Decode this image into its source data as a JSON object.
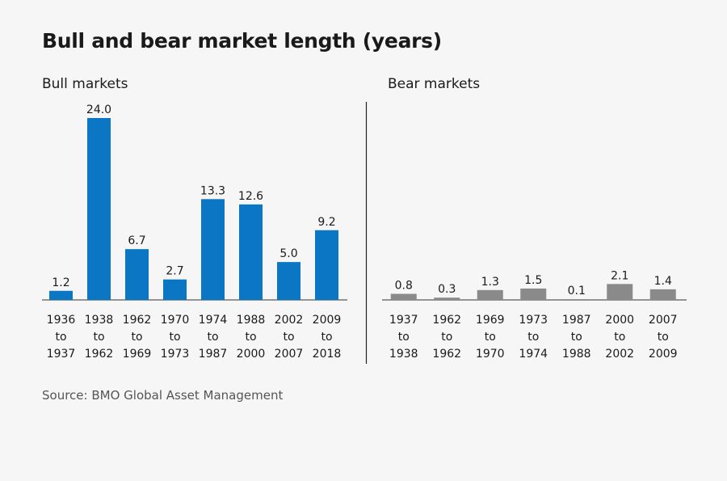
{
  "title": "Bull and bear market length (years)",
  "source": "Source: BMO Global Asset Management",
  "colors": {
    "bull": "#0a76c4",
    "bear": "#8a8a8a",
    "axis": "#333333",
    "background": "#f6f6f6"
  },
  "chart_data": [
    {
      "type": "bar",
      "title": "Bull markets",
      "categories": [
        [
          "1936",
          "to",
          "1937"
        ],
        [
          "1938",
          "to",
          "1962"
        ],
        [
          "1962",
          "to",
          "1969"
        ],
        [
          "1970",
          "to",
          "1973"
        ],
        [
          "1974",
          "to",
          "1987"
        ],
        [
          "1988",
          "to",
          "2000"
        ],
        [
          "2002",
          "to",
          "2007"
        ],
        [
          "2009",
          "to",
          "2018"
        ]
      ],
      "values": [
        1.2,
        24.0,
        6.7,
        2.7,
        13.3,
        12.6,
        5.0,
        9.2
      ],
      "labels": [
        "1.2",
        "24.0",
        "6.7",
        "2.7",
        "13.3",
        "12.6",
        "5.0",
        "9.2"
      ],
      "ylim": [
        0,
        24
      ],
      "grid": false,
      "legend": "none"
    },
    {
      "type": "bar",
      "title": "Bear markets",
      "categories": [
        [
          "1937",
          "to",
          "1938"
        ],
        [
          "1962",
          "to",
          "1962"
        ],
        [
          "1969",
          "to",
          "1970"
        ],
        [
          "1973",
          "to",
          "1974"
        ],
        [
          "1987",
          "to",
          "1988"
        ],
        [
          "2000",
          "to",
          "2002"
        ],
        [
          "2007",
          "to",
          "2009"
        ]
      ],
      "values": [
        0.8,
        0.3,
        1.3,
        1.5,
        0.1,
        2.1,
        1.4
      ],
      "labels": [
        "0.8",
        "0.3",
        "1.3",
        "1.5",
        "0.1",
        "2.1",
        "1.4"
      ],
      "ylim": [
        0,
        24
      ],
      "grid": false,
      "legend": "none"
    }
  ]
}
